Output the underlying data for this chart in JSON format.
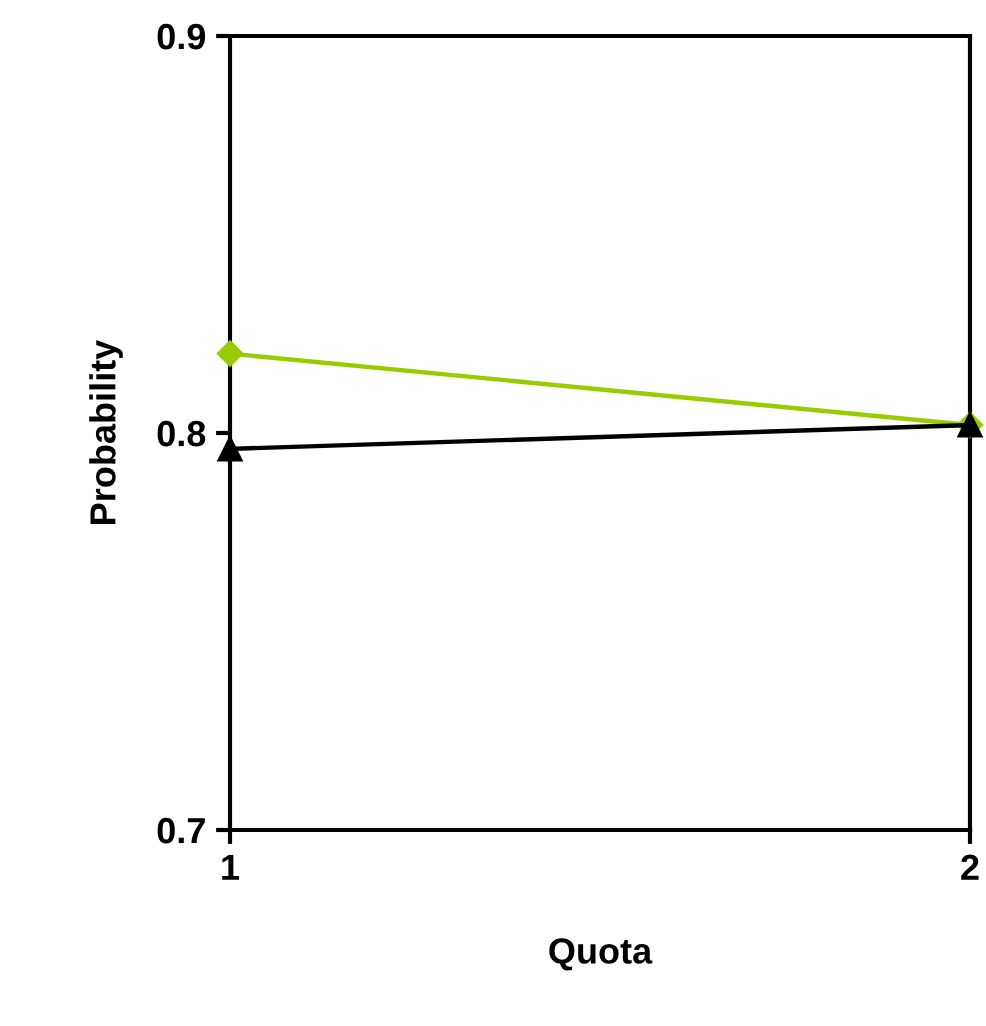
{
  "chart_data": {
    "type": "line",
    "xlabel": "Quota",
    "ylabel": "Probability",
    "x": [
      1,
      2
    ],
    "xlim": [
      1,
      2
    ],
    "xticks": [
      1,
      2
    ],
    "ylim": [
      0.7,
      0.9
    ],
    "yticks": [
      0.7,
      0.8,
      0.9
    ],
    "grid": false,
    "legend": false,
    "series": [
      {
        "color": "#99cc00",
        "marker": "diamond",
        "values": [
          0.82,
          0.802
        ]
      },
      {
        "color": "#000000",
        "marker": "triangle",
        "values": [
          0.796,
          0.802
        ]
      }
    ]
  }
}
